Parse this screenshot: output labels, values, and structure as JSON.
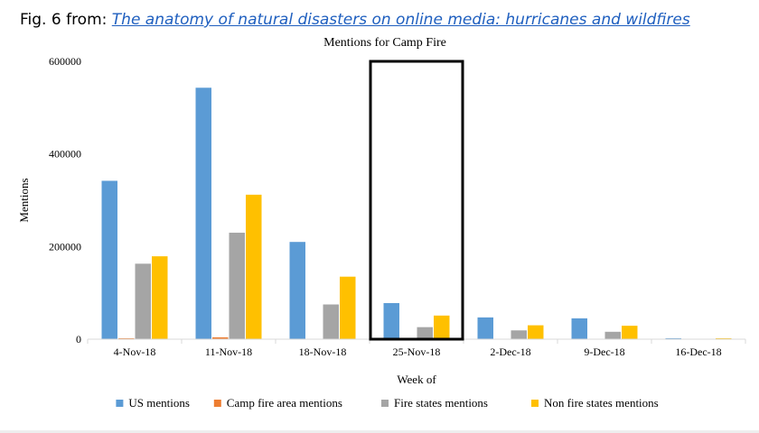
{
  "header": {
    "prefix": "Fig. 6 from: ",
    "link_text": "The anatomy of natural disasters on online media: hurricanes and wildfires"
  },
  "chart_data": {
    "type": "bar",
    "title": "Mentions for Camp Fire",
    "xlabel": "Week of",
    "ylabel": "Mentions",
    "categories": [
      "4-Nov-18",
      "11-Nov-18",
      "18-Nov-18",
      "25-Nov-18",
      "2-Dec-18",
      "9-Dec-18",
      "16-Dec-18"
    ],
    "ylim": [
      0,
      600000
    ],
    "yticks": [
      "0",
      "200000",
      "400000",
      "600000"
    ],
    "ytick_values": [
      0,
      200000,
      400000,
      600000
    ],
    "grid": false,
    "legend_position": "bottom",
    "highlight_category": "25-Nov-18",
    "series": [
      {
        "name": "US mentions",
        "color": "#5b9bd5",
        "values": [
          342000,
          543000,
          210000,
          78000,
          47000,
          45000,
          2000
        ]
      },
      {
        "name": "Camp fire area mentions",
        "color": "#ed7d31",
        "values": [
          2000,
          4000,
          500,
          200,
          100,
          100,
          0
        ]
      },
      {
        "name": "Fire states mentions",
        "color": "#a5a5a5",
        "values": [
          163000,
          230000,
          75000,
          26000,
          19000,
          16000,
          500
        ]
      },
      {
        "name": "Non fire states mentions",
        "color": "#ffc000",
        "values": [
          179000,
          312000,
          135000,
          51000,
          30000,
          29000,
          2000
        ]
      }
    ]
  }
}
